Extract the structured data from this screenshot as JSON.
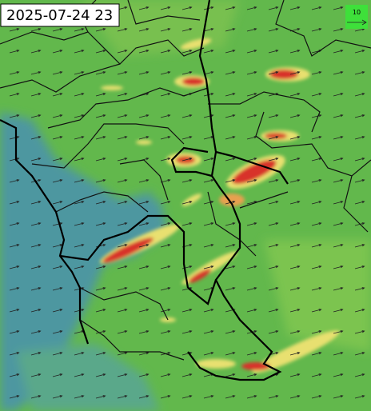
{
  "header": {
    "timestamp": "2025-07-24 23"
  },
  "legend": {
    "arrow_scale": "10"
  }
}
